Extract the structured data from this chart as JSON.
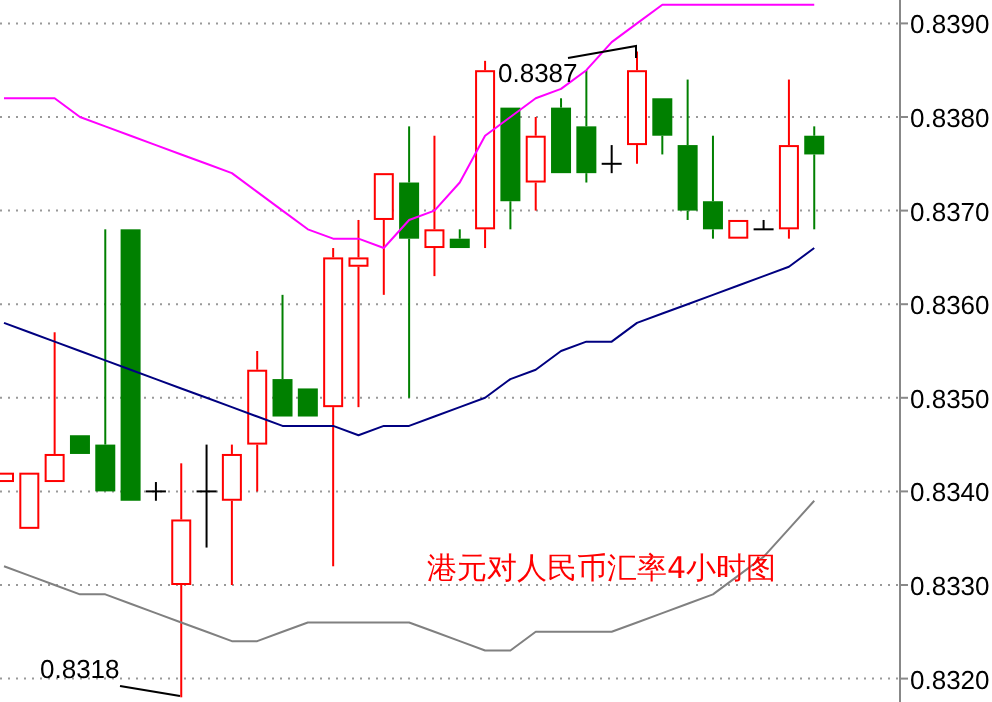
{
  "chart_data": {
    "type": "candlestick",
    "title": "港元对人民币汇率4小时图",
    "categories": [
      null,
      null,
      null,
      null,
      null,
      null,
      null,
      null,
      null,
      null,
      null,
      null,
      null,
      null,
      null,
      null,
      null,
      null,
      null,
      null,
      null,
      null,
      null,
      null,
      null,
      null,
      null,
      null,
      null,
      null,
      null,
      null,
      null
    ],
    "ohlc": [
      [
        0.8341,
        0.8342,
        0.8341,
        0.8342
      ],
      [
        0.8336,
        0.8342,
        0.8336,
        0.8342
      ],
      [
        0.8341,
        0.8357,
        0.8341,
        0.8344
      ],
      [
        0.8346,
        0.8346,
        0.8344,
        0.8344
      ],
      [
        0.8345,
        0.8368,
        0.834,
        0.834
      ],
      [
        0.8368,
        0.8368,
        0.8339,
        0.8339
      ],
      [
        0.834,
        0.8341,
        0.8339,
        0.834
      ],
      [
        0.833,
        0.8343,
        0.8318,
        0.8337
      ],
      [
        0.834,
        0.8345,
        0.8334,
        0.834
      ],
      [
        0.8339,
        0.8345,
        0.833,
        0.8344
      ],
      [
        0.8345,
        0.8355,
        0.834,
        0.8353
      ],
      [
        0.8352,
        0.8361,
        0.8348,
        0.8348
      ],
      [
        0.8351,
        0.8351,
        0.8348,
        0.8348
      ],
      [
        0.8349,
        0.8366,
        0.8332,
        0.8365
      ],
      [
        0.8364,
        0.8369,
        0.8349,
        0.8365
      ],
      [
        0.8369,
        0.8374,
        0.8361,
        0.8374
      ],
      [
        0.8373,
        0.8379,
        0.835,
        0.8367
      ],
      [
        0.8366,
        0.8378,
        0.8363,
        0.8368
      ],
      [
        0.8367,
        0.8368,
        0.8366,
        0.8366
      ],
      [
        0.8368,
        0.8386,
        0.8366,
        0.8385
      ],
      [
        0.8381,
        0.8381,
        0.8368,
        0.8371
      ],
      [
        0.8373,
        0.838,
        0.837,
        0.8378
      ],
      [
        0.8381,
        0.8382,
        0.8374,
        0.8374
      ],
      [
        0.8379,
        0.8385,
        0.8373,
        0.8374
      ],
      [
        0.8375,
        0.8377,
        0.8374,
        0.8375
      ],
      [
        0.8377,
        0.8387,
        0.8375,
        0.8385
      ],
      [
        0.8382,
        0.8382,
        0.8376,
        0.8378
      ],
      [
        0.8377,
        0.8384,
        0.8369,
        0.837
      ],
      [
        0.8371,
        0.8378,
        0.8367,
        0.8368
      ],
      [
        0.8367,
        0.8369,
        0.8367,
        0.8369
      ],
      [
        0.8368,
        0.8369,
        0.8368,
        0.8368
      ],
      [
        0.8368,
        0.8384,
        0.8367,
        0.8377
      ],
      [
        0.8378,
        0.8379,
        0.8368,
        0.8376
      ]
    ],
    "series": [
      {
        "type": "line",
        "color": "#ff00ff",
        "values": [
          0.8382,
          0.8382,
          0.8382,
          0.838,
          0.8379,
          0.8378,
          0.8377,
          0.8376,
          0.8375,
          0.8374,
          0.8372,
          0.837,
          0.8368,
          0.8367,
          0.8367,
          0.8366,
          0.8369,
          0.837,
          0.8373,
          0.8378,
          0.838,
          0.8382,
          0.8383,
          0.8385,
          0.8388,
          0.839,
          0.8392,
          0.8392,
          0.8392,
          0.8392,
          0.8392,
          0.8392,
          0.8392
        ]
      },
      {
        "type": "line",
        "color": "#000080",
        "values": [
          0.8358,
          0.8357,
          0.8356,
          0.8355,
          0.8354,
          0.8353,
          0.8352,
          0.8351,
          0.835,
          0.8349,
          0.8348,
          0.8347,
          0.8347,
          0.8347,
          0.8346,
          0.8347,
          0.8347,
          0.8348,
          0.8349,
          0.835,
          0.8352,
          0.8353,
          0.8355,
          0.8356,
          0.8356,
          0.8358,
          0.8359,
          0.836,
          0.8361,
          0.8362,
          0.8363,
          0.8364,
          0.8366
        ]
      },
      {
        "type": "line",
        "color": "#808080",
        "values": [
          0.8332,
          0.8331,
          0.833,
          0.8329,
          0.8329,
          0.8328,
          0.8327,
          0.8326,
          0.8325,
          0.8324,
          0.8324,
          0.8325,
          0.8326,
          0.8326,
          0.8326,
          0.8326,
          0.8326,
          0.8325,
          0.8324,
          0.8323,
          0.8323,
          0.8325,
          0.8325,
          0.8325,
          0.8325,
          0.8326,
          0.8327,
          0.8328,
          0.8329,
          0.8331,
          0.8333,
          0.8336,
          0.8339
        ]
      }
    ],
    "ylim": [
      0.83175,
      0.83925
    ],
    "yticks": [
      {
        "value": 0.832,
        "label": "0.8320"
      },
      {
        "value": 0.833,
        "label": "0.8330"
      },
      {
        "value": 0.834,
        "label": "0.8340"
      },
      {
        "value": 0.835,
        "label": "0.8350"
      },
      {
        "value": 0.836,
        "label": "0.8360"
      },
      {
        "value": 0.837,
        "label": "0.8370"
      },
      {
        "value": 0.838,
        "label": "0.8380"
      },
      {
        "value": 0.839,
        "label": "0.8390"
      }
    ],
    "grid": "y",
    "annotations": [
      "0.8318",
      "0.8387"
    ]
  }
}
